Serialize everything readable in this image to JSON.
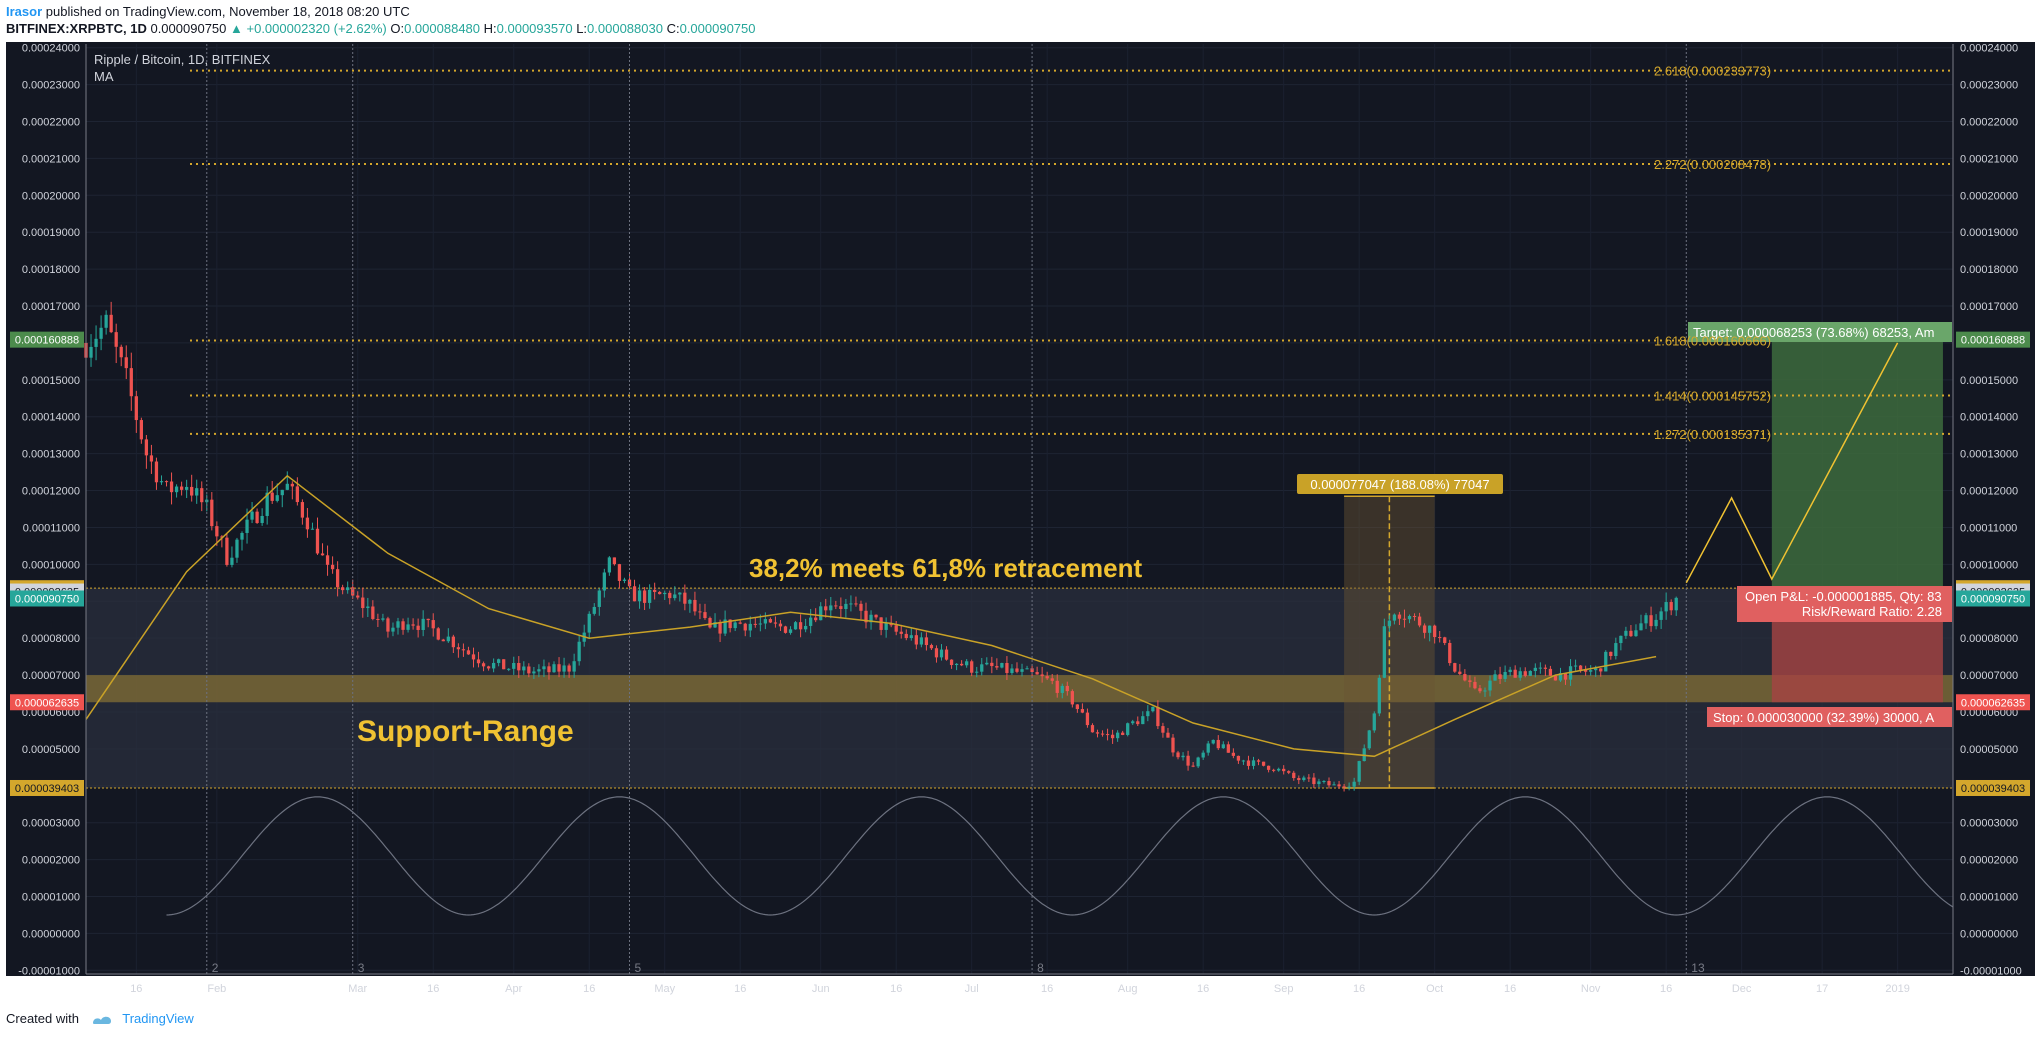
{
  "header": {
    "user": "Irasor",
    "published_text": "published on TradingView.com, November 18, 2018 08:20 UTC",
    "symbol": "BITFINEX:XRPBTC, 1D",
    "last": "0.000090750",
    "change": "▲ +0.000002320 (+2.62%)",
    "open_label": "O:",
    "open": "0.000088480",
    "high_label": "H:",
    "high": "0.000093570",
    "low_label": "L:",
    "low": "0.000088030",
    "close_label": "C:",
    "close": "0.000090750"
  },
  "legend": {
    "title": "Ripple / Bitcoin, 1D, BITFINEX",
    "indicator": "MA"
  },
  "colors": {
    "background": "#131722",
    "bull": "#26a69a",
    "bear": "#ef5350",
    "fib": "#d4a72c",
    "annotation": "#f0c232",
    "ma": "#c9a227",
    "target": "#4c8b4c",
    "stop": "#c24b4b"
  },
  "annotations": {
    "retracement": "38,2% meets 61,8% retracement",
    "support": "Support-Range",
    "range_label": "0.000077047 (188.08%) 77047",
    "target_label": "Target: 0.000068253 (73.68%) 68253, Am",
    "pnl_line1": "Open P&L: -0.000001885, Qty: 83",
    "pnl_line2": "Risk/Reward Ratio: 2.28",
    "stop_label": "Stop: 0.000030000 (32.39%) 30000, A"
  },
  "fib_levels": [
    {
      "label": "2.618(0.000233773)",
      "value": 0.000233773
    },
    {
      "label": "2.272(0.000208478)",
      "value": 0.000208478
    },
    {
      "label": "1.618(0.000160666)",
      "value": 0.000160666
    },
    {
      "label": "1.414(0.000145752)",
      "value": 0.000145752
    },
    {
      "label": "1.272(0.000135371)",
      "value": 0.000135371
    }
  ],
  "price_tags": [
    {
      "label": "0.000160888",
      "value": 0.000160888,
      "color": "#4c8b4c"
    },
    {
      "label": "0.000093543",
      "value": 9.3543e-05,
      "color": "#d4a72c"
    },
    {
      "label": "0.000092635",
      "value": 9.2635e-05,
      "color": "#d1d4dc"
    },
    {
      "label": "0.000090750",
      "value": 9.075e-05,
      "color": "#26a69a"
    },
    {
      "label": "0.000062635",
      "value": 6.2635e-05,
      "color": "#ef5350"
    },
    {
      "label": "0.000039403",
      "value": 3.9403e-05,
      "color": "#d4a72c"
    }
  ],
  "cycle_labels": [
    "2",
    "3",
    "5",
    "8",
    "13"
  ],
  "footer": {
    "created_with": "Created with",
    "brand": "TradingView"
  },
  "chart_data": {
    "type": "candlestick",
    "title": "Ripple / Bitcoin, 1D, BITFINEX",
    "y_ticks": [
      "0.00024000",
      "0.00023000",
      "0.00022000",
      "0.00021000",
      "0.00020000",
      "0.00019000",
      "0.00018000",
      "0.00017000",
      "0.00016000",
      "0.00015000",
      "0.00014000",
      "0.00013000",
      "0.00012000",
      "0.00011000",
      "0.00010000",
      "0.00009000",
      "0.00008000",
      "0.00007000",
      "0.00006000",
      "0.00005000",
      "0.00004000",
      "0.00003000",
      "0.00002000",
      "0.00001000",
      "0.00000000",
      "-0.00001000"
    ],
    "x_ticks": [
      "16",
      "Feb",
      "Mar",
      "16",
      "Apr",
      "16",
      "May",
      "16",
      "Jun",
      "16",
      "Jul",
      "16",
      "Aug",
      "16",
      "Sep",
      "16",
      "Oct",
      "16",
      "Nov",
      "16",
      "Dec",
      "17",
      "2019"
    ],
    "x_range": [
      "2018-01-06",
      "2019-01-12"
    ],
    "y_range": [
      -1.1e-05,
      0.000241
    ],
    "support_range": [
      6.2635e-05,
      7e-05
    ],
    "price_series": {
      "name": "XRPBTC",
      "x": [
        "2018-01-06",
        "2018-01-10",
        "2018-01-14",
        "2018-01-18",
        "2018-01-22",
        "2018-01-26",
        "2018-01-30",
        "2018-02-03",
        "2018-02-07",
        "2018-02-11",
        "2018-02-15",
        "2018-02-19",
        "2018-02-23",
        "2018-02-27",
        "2018-03-03",
        "2018-03-07",
        "2018-03-11",
        "2018-03-15",
        "2018-03-19",
        "2018-03-23",
        "2018-03-27",
        "2018-03-31",
        "2018-04-04",
        "2018-04-08",
        "2018-04-12",
        "2018-04-16",
        "2018-04-20",
        "2018-04-24",
        "2018-04-28",
        "2018-05-02",
        "2018-05-06",
        "2018-05-10",
        "2018-05-14",
        "2018-05-18",
        "2018-05-22",
        "2018-05-26",
        "2018-05-30",
        "2018-06-03",
        "2018-06-07",
        "2018-06-11",
        "2018-06-15",
        "2018-06-19",
        "2018-06-23",
        "2018-06-27",
        "2018-07-01",
        "2018-07-05",
        "2018-07-09",
        "2018-07-13",
        "2018-07-17",
        "2018-07-21",
        "2018-07-25",
        "2018-07-29",
        "2018-08-02",
        "2018-08-06",
        "2018-08-10",
        "2018-08-14",
        "2018-08-18",
        "2018-08-22",
        "2018-08-26",
        "2018-08-30",
        "2018-09-03",
        "2018-09-07",
        "2018-09-11",
        "2018-09-15",
        "2018-09-19",
        "2018-09-21",
        "2018-09-23",
        "2018-09-27",
        "2018-10-01",
        "2018-10-05",
        "2018-10-09",
        "2018-10-13",
        "2018-10-17",
        "2018-10-21",
        "2018-10-25",
        "2018-10-29",
        "2018-11-02",
        "2018-11-06",
        "2018-11-10",
        "2018-11-14",
        "2018-11-18"
      ],
      "close": [
        0.00016,
        0.000165,
        0.00015,
        0.00013,
        0.00012,
        0.000122,
        0.000115,
        0.000102,
        0.00011,
        0.000118,
        0.000121,
        0.000112,
        9.8e-05,
        9.2e-05,
        8.8e-05,
        8.2e-05,
        8.5e-05,
        8.3e-05,
        8e-05,
        7.6e-05,
        7.3e-05,
        7.2e-05,
        7.1e-05,
        7.1e-05,
        7.2e-05,
        8.5e-05,
        0.0001,
        9.2e-05,
        9.1e-05,
        9.2e-05,
        8.9e-05,
        8.2e-05,
        8.4e-05,
        8.4e-05,
        8.3e-05,
        8.3e-05,
        8.6e-05,
        9e-05,
        8.8e-05,
        8.5e-05,
        8.2e-05,
        8e-05,
        7.7e-05,
        7.4e-05,
        7.2e-05,
        7.2e-05,
        7.1e-05,
        7e-05,
        6.8e-05,
        6.3e-05,
        5.5e-05,
        5.3e-05,
        5.7e-05,
        6e-05,
        5e-05,
        4.5e-05,
        5.2e-05,
        4.8e-05,
        4.6e-05,
        4.5e-05,
        4.2e-05,
        4.1e-05,
        4e-05,
        4.1e-05,
        6e-05,
        8.2e-05,
        8.8e-05,
        8.5e-05,
        8.2e-05,
        7.2e-05,
        6.5e-05,
        6.9e-05,
        7.1e-05,
        7.1e-05,
        7e-05,
        7.1e-05,
        7.1e-05,
        7.8e-05,
        8.3e-05,
        8.6e-05,
        9.075e-05
      ]
    },
    "ma_series": {
      "name": "MA",
      "x": [
        "2018-01-06",
        "2018-01-26",
        "2018-02-15",
        "2018-03-07",
        "2018-03-27",
        "2018-04-16",
        "2018-05-06",
        "2018-05-26",
        "2018-06-15",
        "2018-07-05",
        "2018-07-25",
        "2018-08-14",
        "2018-09-03",
        "2018-09-19",
        "2018-10-05",
        "2018-10-25",
        "2018-11-14"
      ],
      "values": [
        5.8e-05,
        9.8e-05,
        0.000124,
        0.000103,
        8.8e-05,
        8e-05,
        8.3e-05,
        8.7e-05,
        8.4e-05,
        7.8e-05,
        6.9e-05,
        5.7e-05,
        5e-05,
        4.8e-05,
        5.8e-05,
        7e-05,
        7.5e-05
      ]
    },
    "range_measure": {
      "from": "2018-09-13",
      "to": "2018-10-01",
      "low": 3.9403e-05,
      "high": 0.00011845
    },
    "position": {
      "entry": 9.2635e-05,
      "target": 0.000160888,
      "stop": 6.2635e-05,
      "from": "2018-12-07",
      "to": "2019-01-10"
    },
    "projection": {
      "x": [
        "2018-11-20",
        "2018-11-29",
        "2018-12-07",
        "2019-01-01"
      ],
      "values": [
        9.5e-05,
        0.000118,
        9.6e-05,
        0.00016
      ]
    },
    "oscillator": {
      "type": "sine",
      "period_days": 60,
      "min": 5e-06,
      "max": 3.7e-05
    }
  }
}
